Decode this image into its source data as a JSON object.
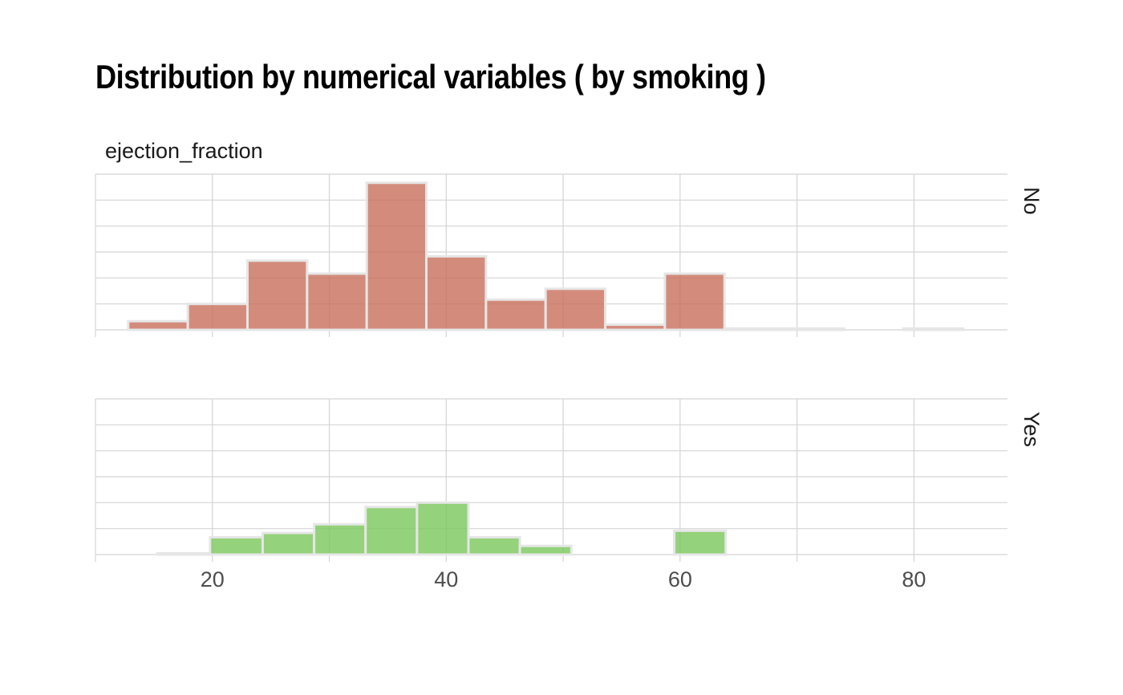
{
  "title": "Distribution by numerical variables ( by smoking )",
  "chart_data": {
    "type": "bar",
    "subtype": "histogram",
    "title": "Distribution by numerical variables ( by smoking )",
    "facet_label": "ejection_fraction",
    "xlabel": "",
    "ylabel": "",
    "xlim": [
      10,
      88
    ],
    "x_ticks": [
      20,
      40,
      60,
      80
    ],
    "bin_width": 5.1,
    "grid": true,
    "y_tick_labels_visible": false,
    "panels": [
      {
        "name": "No",
        "color": "#C9735F",
        "ylim": [
          0,
          36
        ],
        "bins": [
          {
            "start": 12.8,
            "end": 17.9,
            "count": 2
          },
          {
            "start": 17.9,
            "end": 23.0,
            "count": 6
          },
          {
            "start": 23.0,
            "end": 28.1,
            "count": 16
          },
          {
            "start": 28.1,
            "end": 33.2,
            "count": 13
          },
          {
            "start": 33.2,
            "end": 38.3,
            "count": 34
          },
          {
            "start": 38.3,
            "end": 43.4,
            "count": 17
          },
          {
            "start": 43.4,
            "end": 48.5,
            "count": 7
          },
          {
            "start": 48.5,
            "end": 53.6,
            "count": 9.5
          },
          {
            "start": 53.6,
            "end": 58.7,
            "count": 1.2
          },
          {
            "start": 58.7,
            "end": 63.8,
            "count": 13
          },
          {
            "start": 63.8,
            "end": 68.9,
            "count": 0.3
          },
          {
            "start": 68.9,
            "end": 74.0,
            "count": 0.3
          },
          {
            "start": 74.0,
            "end": 79.1,
            "count": 0
          },
          {
            "start": 79.1,
            "end": 84.2,
            "count": 0.3
          }
        ]
      },
      {
        "name": "Yes",
        "color": "#7CC85E",
        "ylim": [
          0,
          36
        ],
        "bins": [
          {
            "start": 10.8,
            "end": 15.3,
            "count": 0
          },
          {
            "start": 15.3,
            "end": 19.8,
            "count": 0.3
          },
          {
            "start": 19.8,
            "end": 24.3,
            "count": 4
          },
          {
            "start": 24.3,
            "end": 28.7,
            "count": 5
          },
          {
            "start": 28.7,
            "end": 33.1,
            "count": 7
          },
          {
            "start": 33.1,
            "end": 37.5,
            "count": 11
          },
          {
            "start": 37.5,
            "end": 41.9,
            "count": 12
          },
          {
            "start": 41.9,
            "end": 46.3,
            "count": 4
          },
          {
            "start": 46.3,
            "end": 50.7,
            "count": 2
          },
          {
            "start": 50.7,
            "end": 55.1,
            "count": 0
          },
          {
            "start": 55.1,
            "end": 59.5,
            "count": 0
          },
          {
            "start": 59.5,
            "end": 63.9,
            "count": 5.5
          }
        ]
      }
    ]
  }
}
